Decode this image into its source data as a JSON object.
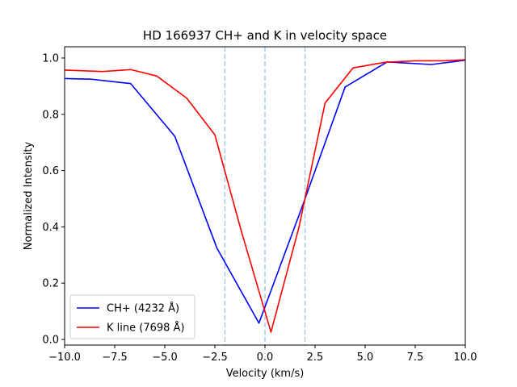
{
  "chart_data": {
    "type": "line",
    "title": "HD 166937 CH+ and K in velocity space",
    "xlabel": "Velocity (km/s)",
    "ylabel": "Normalized Intensity",
    "xlim": [
      -10,
      10
    ],
    "ylim": [
      -0.02,
      1.04
    ],
    "xticks": [
      -10,
      -7.5,
      -5,
      -2.5,
      0,
      2.5,
      5,
      7.5,
      10
    ],
    "xtick_labels": [
      "−10.0",
      "−7.5",
      "−5.0",
      "−2.5",
      "0.0",
      "2.5",
      "5.0",
      "7.5",
      "10.0"
    ],
    "yticks": [
      0,
      0.2,
      0.4,
      0.6,
      0.8,
      1.0
    ],
    "ytick_labels": [
      "0.0",
      "0.2",
      "0.4",
      "0.6",
      "0.8",
      "1.0"
    ],
    "grid": false,
    "legend_position": "lower-left",
    "vlines": {
      "x": [
        -2,
        0,
        2
      ],
      "color": "#a6c8e8",
      "style": "dashed"
    },
    "series": [
      {
        "name": "CH+ (4232 Å)",
        "color": "#0000ff",
        "x": [
          -10.0,
          -8.7,
          -6.7,
          -4.5,
          -2.4,
          -0.3,
          1.9,
          4.0,
          6.1,
          8.3,
          10.0
        ],
        "y": [
          0.927,
          0.925,
          0.909,
          0.722,
          0.325,
          0.058,
          0.48,
          0.897,
          0.986,
          0.977,
          0.992
        ]
      },
      {
        "name": "K line (7698 Å)",
        "color": "#ff0000",
        "x": [
          -10.0,
          -8.1,
          -6.7,
          -5.4,
          -3.9,
          -2.5,
          -1.2,
          0.3,
          1.7,
          3.0,
          4.4,
          6.0,
          7.5,
          8.9,
          10.0
        ],
        "y": [
          0.957,
          0.952,
          0.959,
          0.936,
          0.857,
          0.727,
          0.39,
          0.026,
          0.4,
          0.84,
          0.965,
          0.985,
          0.99,
          0.99,
          0.994
        ]
      }
    ]
  }
}
